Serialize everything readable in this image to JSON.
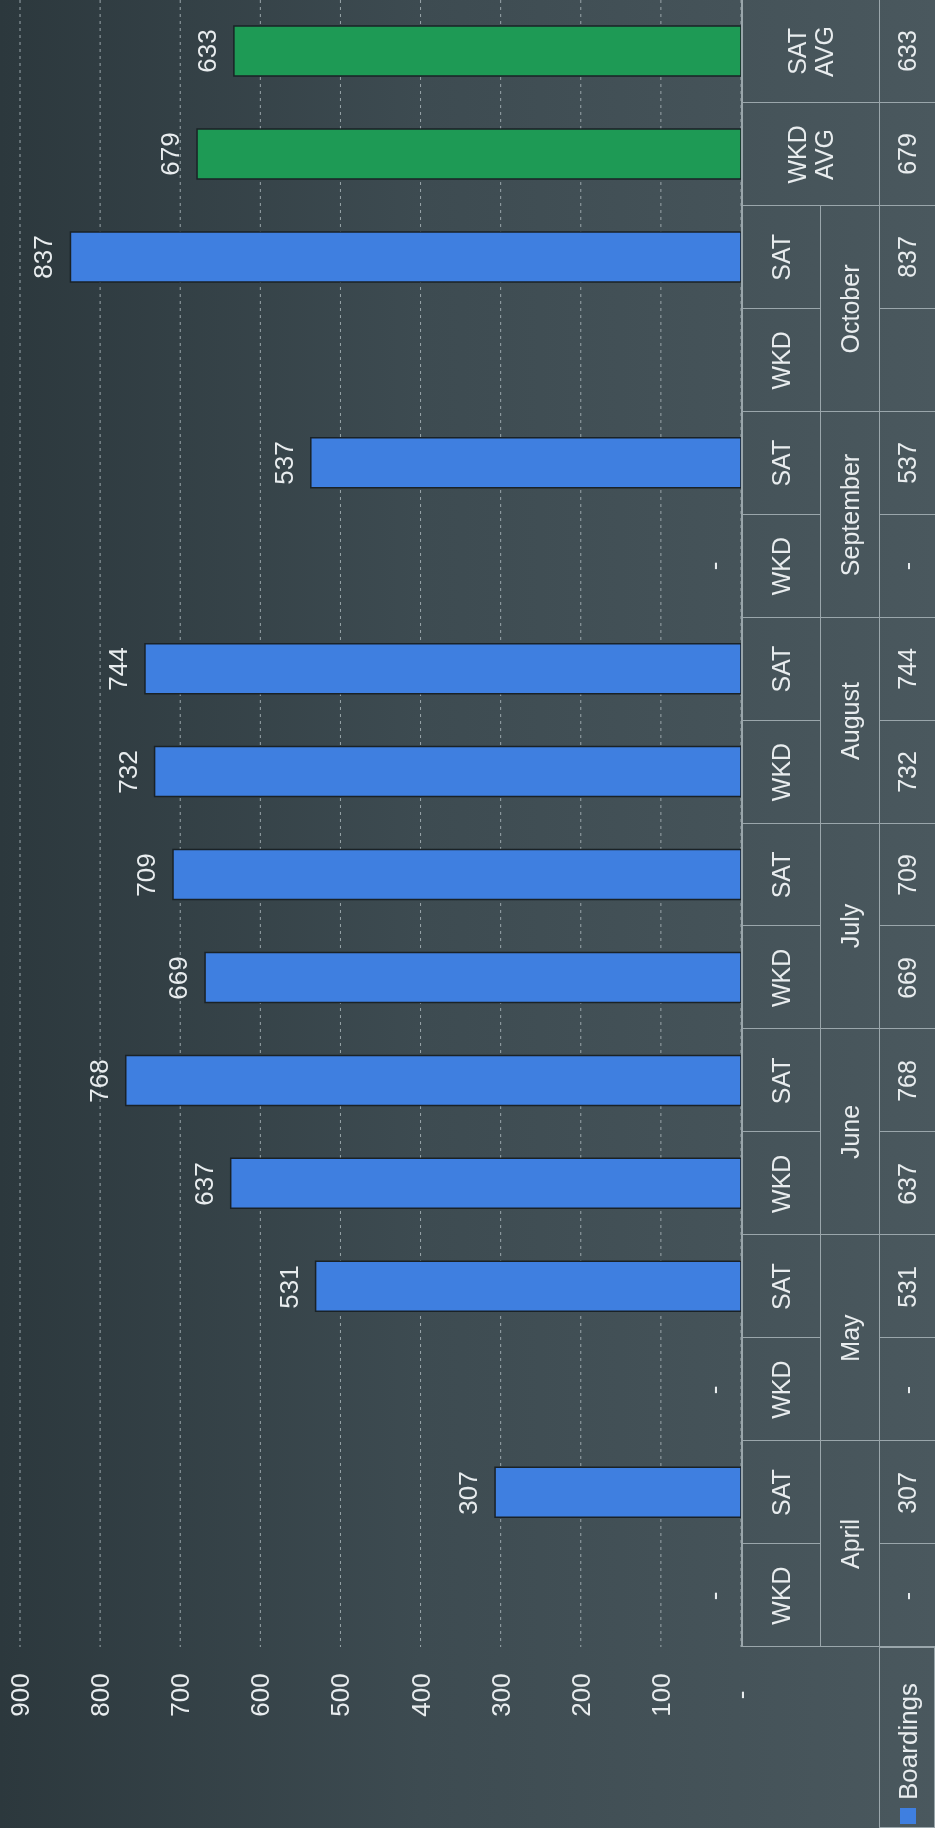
{
  "chart_data": {
    "type": "bar",
    "orientation": "horizontal",
    "categories": [
      "SAT AVG",
      "WKD AVG",
      "SAT",
      "WKD",
      "SAT",
      "WKD",
      "SAT",
      "WKD",
      "SAT",
      "WKD",
      "SAT",
      "WKD",
      "SAT",
      "WKD",
      "SAT",
      "WKD"
    ],
    "annotations": [
      "October",
      "September",
      "August",
      "July",
      "June",
      "May",
      "April"
    ],
    "series": [
      {
        "name": "Boardings",
        "color": "#3f7fe0",
        "values": [
          633,
          679,
          837,
          null,
          537,
          null,
          744,
          732,
          709,
          669,
          768,
          637,
          531,
          null,
          307,
          null
        ],
        "colors": [
          "#1e9a55",
          "#1e9a55",
          "#3f7fe0",
          "#3f7fe0",
          "#3f7fe0",
          "#3f7fe0",
          "#3f7fe0",
          "#3f7fe0",
          "#3f7fe0",
          "#3f7fe0",
          "#3f7fe0",
          "#3f7fe0",
          "#3f7fe0",
          "#3f7fe0",
          "#3f7fe0",
          "#3f7fe0"
        ],
        "value_labels": [
          "633",
          "679",
          "837",
          null,
          "537",
          "-",
          "744",
          "732",
          "709",
          "669",
          "768",
          "637",
          "531",
          "-",
          "307",
          "-"
        ]
      }
    ],
    "xlim": [
      900,
      0
    ],
    "xticks": [
      900,
      800,
      700,
      600,
      500,
      400,
      300,
      200,
      100,
      {
        "value": 0,
        "label": "-"
      }
    ],
    "grid": "x",
    "legend": "bottom"
  }
}
